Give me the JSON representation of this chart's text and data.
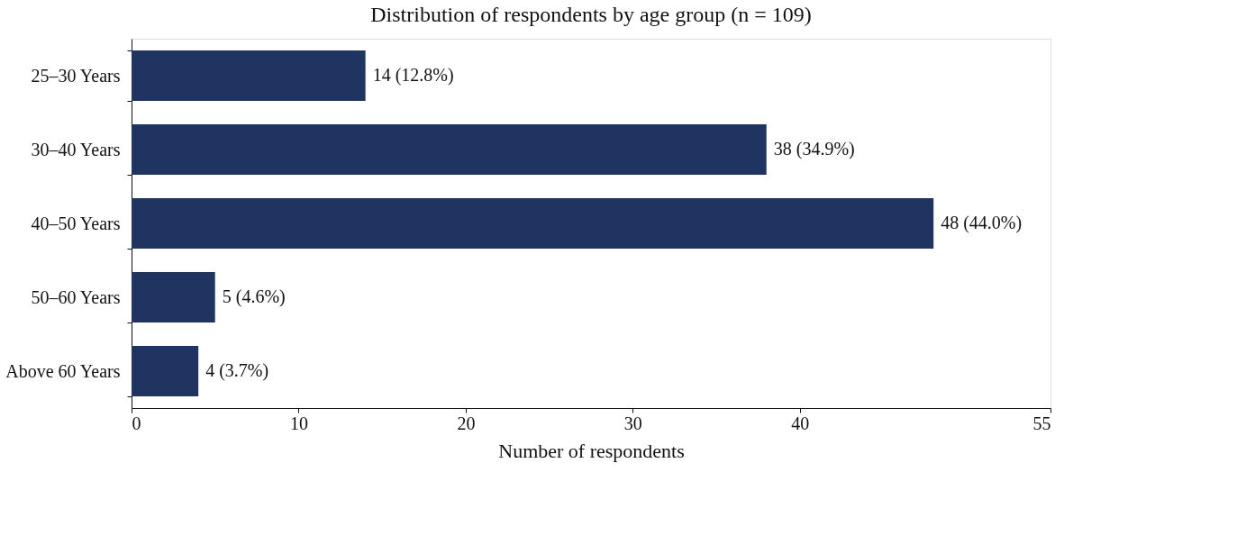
{
  "chart_data": {
    "type": "bar",
    "orientation": "horizontal",
    "title": "Distribution of respondents by age group (n = 109)",
    "xlabel": "Number of respondents",
    "categories": [
      "25–30 Years",
      "30–40 Years",
      "40–50 Years",
      "50–60 Years",
      "Above 60 Years"
    ],
    "values": [
      14,
      38,
      48,
      5,
      4
    ],
    "value_labels": [
      "14 (12.8%)",
      "38 (34.9%)",
      "48 (44.0%)",
      "5 (4.6%)",
      "4 (3.7%)"
    ],
    "color": "#1f3461",
    "xlim": [
      0,
      55
    ],
    "xticks": [
      0,
      10,
      20,
      30,
      40,
      55
    ],
    "grid": false
  }
}
